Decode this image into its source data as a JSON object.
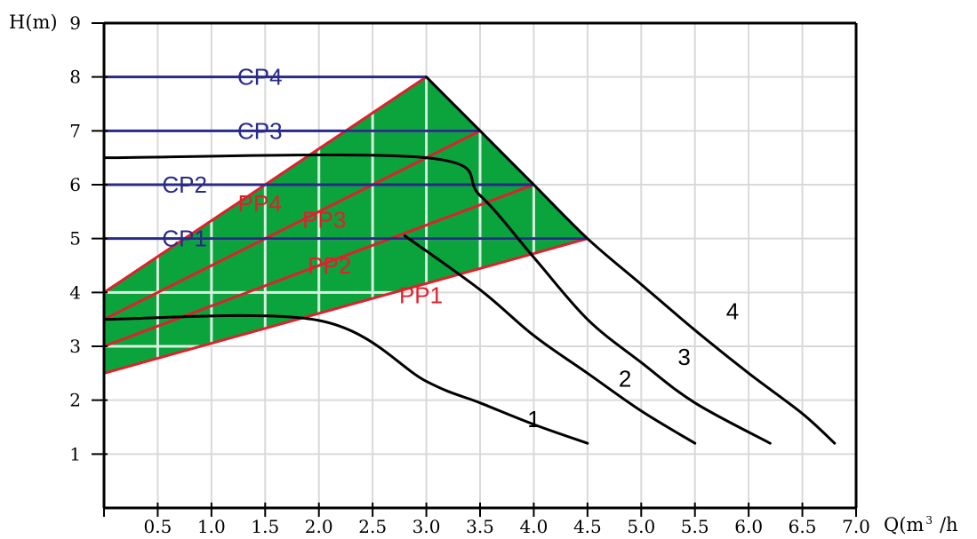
{
  "chart_data": {
    "type": "line",
    "title": "",
    "ylabel": "H(m)",
    "xlabel": "Q(m³/h)",
    "xlabel_parts": {
      "base": "Q(m",
      "sup": "3",
      "tail": "/h"
    },
    "xlim": [
      0,
      7
    ],
    "ylim": [
      0,
      9
    ],
    "xticks": [
      0.5,
      1.0,
      1.5,
      2.0,
      2.5,
      3.0,
      3.5,
      4.0,
      4.5,
      5.0,
      5.5,
      6.0,
      6.5,
      7.0
    ],
    "xtick_labels": [
      "0.5",
      "1.0",
      "1.5",
      "2.0",
      "2.5",
      "3.0",
      "3.5",
      "4.0",
      "4.5",
      "5.0",
      "5.5",
      "6.0",
      "6.5",
      "7.0"
    ],
    "yticks": [
      1,
      2,
      3,
      4,
      5,
      6,
      7,
      8,
      9
    ],
    "ytick_labels": [
      "1",
      "2",
      "3",
      "4",
      "5",
      "6",
      "7",
      "8",
      "9"
    ],
    "grid": true,
    "colors": {
      "operating_area": "#0aa33c",
      "grid_inside_area": "#d8efdf",
      "grid_outside_area": "#d9d9d9",
      "pump_curve": "#000000",
      "constant_pressure": "#2a2a8a",
      "proportional_pressure": "#e0202c"
    },
    "operating_area": [
      [
        0,
        2.5
      ],
      [
        4.5,
        5.0
      ],
      [
        3.0,
        8.0
      ],
      [
        0,
        4.0
      ]
    ],
    "pump_curves": [
      {
        "name": "1",
        "label_at": [
          1.15,
          1.8
        ],
        "points": [
          [
            0,
            3.5
          ],
          [
            2.0,
            3.48
          ],
          [
            3.0,
            2.35
          ],
          [
            3.5,
            1.95
          ],
          [
            4.0,
            1.55
          ],
          [
            4.5,
            1.2
          ]
        ]
      },
      {
        "name": "2",
        "label_at": [
          3.5,
          2.3
        ],
        "points": [
          [
            2.8,
            5.05
          ],
          [
            3.5,
            4.05
          ],
          [
            4.0,
            3.2
          ],
          [
            4.5,
            2.5
          ],
          [
            5.0,
            1.8
          ],
          [
            5.5,
            1.2
          ]
        ]
      },
      {
        "name": "3",
        "label_at": [
          3.1,
          3.0
        ],
        "points": [
          [
            0,
            6.5
          ],
          [
            3.0,
            6.5
          ],
          [
            3.5,
            5.8
          ],
          [
            4.0,
            4.65
          ],
          [
            4.5,
            3.5
          ],
          [
            5.0,
            2.7
          ],
          [
            5.5,
            1.95
          ],
          [
            6.2,
            1.2
          ]
        ]
      },
      {
        "name": "4",
        "label_at": [
          3.7,
          3.75
        ],
        "points": [
          [
            3.0,
            8.0
          ],
          [
            3.5,
            7.0
          ],
          [
            4.0,
            6.0
          ],
          [
            4.5,
            5.0
          ],
          [
            5.0,
            4.15
          ],
          [
            5.5,
            3.3
          ],
          [
            6.0,
            2.5
          ],
          [
            6.5,
            1.75
          ],
          [
            6.8,
            1.2
          ]
        ]
      }
    ],
    "constant_pressure_lines": [
      {
        "name": "CP1",
        "y": 5.0,
        "x_end": 4.5
      },
      {
        "name": "CP2",
        "y": 6.0,
        "x_end": 4.0
      },
      {
        "name": "CP3",
        "y": 7.0,
        "x_end": 3.5
      },
      {
        "name": "CP4",
        "y": 8.0,
        "x_end": 3.0
      }
    ],
    "proportional_pressure_lines": [
      {
        "name": "PP1",
        "points": [
          [
            0,
            2.5
          ],
          [
            4.5,
            5.0
          ]
        ]
      },
      {
        "name": "PP2",
        "points": [
          [
            0,
            3.0
          ],
          [
            4.0,
            6.0
          ]
        ]
      },
      {
        "name": "PP3",
        "points": [
          [
            0,
            3.5
          ],
          [
            3.5,
            7.0
          ]
        ]
      },
      {
        "name": "PP4",
        "points": [
          [
            0,
            4.0
          ],
          [
            3.0,
            8.0
          ]
        ]
      }
    ],
    "annotations": [
      {
        "text": "CP4",
        "x": 1.45,
        "y": 8.0,
        "color": "constant_pressure"
      },
      {
        "text": "CP3",
        "x": 1.45,
        "y": 7.0,
        "color": "constant_pressure"
      },
      {
        "text": "CP2",
        "x": 0.75,
        "y": 6.0,
        "color": "constant_pressure"
      },
      {
        "text": "CP1",
        "x": 0.75,
        "y": 5.0,
        "color": "constant_pressure"
      },
      {
        "text": "PP4",
        "x": 1.45,
        "y": 5.65,
        "color": "proportional_pressure"
      },
      {
        "text": "PP3",
        "x": 2.05,
        "y": 5.35,
        "color": "proportional_pressure"
      },
      {
        "text": "PP2",
        "x": 2.1,
        "y": 4.5,
        "color": "proportional_pressure"
      },
      {
        "text": "PP1",
        "x": 2.95,
        "y": 3.95,
        "color": "proportional_pressure"
      },
      {
        "text": "1",
        "x": 4.0,
        "y": 1.65,
        "color": "pump_curve"
      },
      {
        "text": "2",
        "x": 4.85,
        "y": 2.4,
        "color": "pump_curve"
      },
      {
        "text": "3",
        "x": 5.4,
        "y": 2.8,
        "color": "pump_curve"
      },
      {
        "text": "4",
        "x": 5.85,
        "y": 3.65,
        "color": "pump_curve"
      }
    ]
  }
}
